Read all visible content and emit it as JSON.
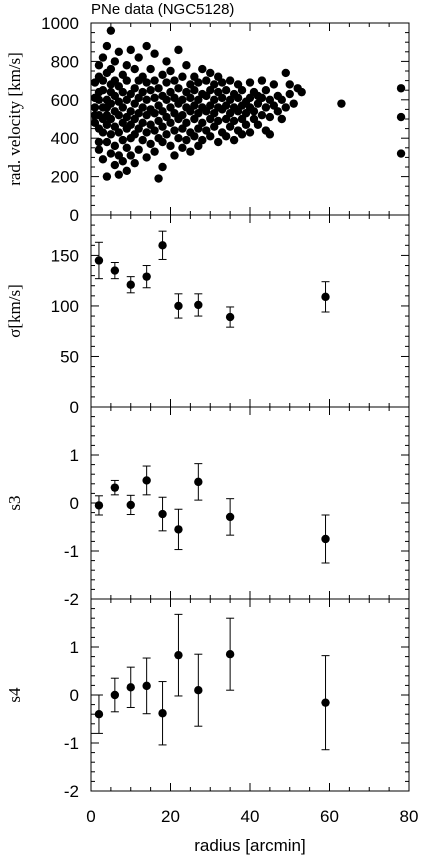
{
  "chart_data": [
    {
      "type": "scatter",
      "title": "PNe data (NGC5128)",
      "ylabel": "rad. velocity [km/s]",
      "xlim": [
        0,
        80
      ],
      "ylim": [
        0,
        1000
      ],
      "yticks": [
        "0",
        "200",
        "400",
        "600",
        "800",
        "1000"
      ],
      "note": "dense cloud of individual planetary nebulae; values below are an approximate sampling",
      "points": [
        [
          1,
          520
        ],
        [
          1,
          610
        ],
        [
          1,
          480
        ],
        [
          1,
          690
        ],
        [
          1,
          560
        ],
        [
          2,
          720
        ],
        [
          2,
          450
        ],
        [
          2,
          380
        ],
        [
          2,
          640
        ],
        [
          2,
          520
        ],
        [
          2,
          600
        ],
        [
          2,
          340
        ],
        [
          2,
          780
        ],
        [
          3,
          500
        ],
        [
          3,
          560
        ],
        [
          3,
          820
        ],
        [
          3,
          430
        ],
        [
          3,
          650
        ],
        [
          3,
          290
        ],
        [
          3,
          700
        ],
        [
          4,
          520
        ],
        [
          4,
          600
        ],
        [
          4,
          380
        ],
        [
          4,
          470
        ],
        [
          4,
          740
        ],
        [
          4,
          200
        ],
        [
          4,
          880
        ],
        [
          4,
          560
        ],
        [
          5,
          500
        ],
        [
          5,
          640
        ],
        [
          5,
          420
        ],
        [
          5,
          580
        ],
        [
          5,
          320
        ],
        [
          5,
          760
        ],
        [
          5,
          960
        ],
        [
          5,
          680
        ],
        [
          6,
          540
        ],
        [
          6,
          460
        ],
        [
          6,
          620
        ],
        [
          6,
          360
        ],
        [
          6,
          700
        ],
        [
          6,
          800
        ],
        [
          6,
          260
        ],
        [
          7,
          520
        ],
        [
          7,
          590
        ],
        [
          7,
          430
        ],
        [
          7,
          670
        ],
        [
          7,
          310
        ],
        [
          7,
          850
        ],
        [
          7,
          210
        ],
        [
          8,
          560
        ],
        [
          8,
          480
        ],
        [
          8,
          640
        ],
        [
          8,
          390
        ],
        [
          8,
          730
        ],
        [
          8,
          280
        ],
        [
          9,
          510
        ],
        [
          9,
          600
        ],
        [
          9,
          450
        ],
        [
          9,
          700
        ],
        [
          9,
          350
        ],
        [
          9,
          780
        ],
        [
          9,
          230
        ],
        [
          10,
          540
        ],
        [
          10,
          470
        ],
        [
          10,
          630
        ],
        [
          10,
          400
        ],
        [
          10,
          860
        ],
        [
          10,
          310
        ],
        [
          11,
          580
        ],
        [
          11,
          500
        ],
        [
          11,
          660
        ],
        [
          11,
          420
        ],
        [
          11,
          760
        ],
        [
          11,
          270
        ],
        [
          12,
          530
        ],
        [
          12,
          610
        ],
        [
          12,
          450
        ],
        [
          12,
          700
        ],
        [
          12,
          340
        ],
        [
          12,
          820
        ],
        [
          13,
          560
        ],
        [
          13,
          480
        ],
        [
          13,
          640
        ],
        [
          13,
          390
        ],
        [
          13,
          720
        ],
        [
          14,
          520
        ],
        [
          14,
          600
        ],
        [
          14,
          430
        ],
        [
          14,
          690
        ],
        [
          14,
          300
        ],
        [
          14,
          880
        ],
        [
          15,
          550
        ],
        [
          15,
          470
        ],
        [
          15,
          650
        ],
        [
          15,
          370
        ],
        [
          15,
          760
        ],
        [
          16,
          530
        ],
        [
          16,
          610
        ],
        [
          16,
          440
        ],
        [
          16,
          700
        ],
        [
          16,
          330
        ],
        [
          16,
          840
        ],
        [
          17,
          570
        ],
        [
          17,
          490
        ],
        [
          17,
          660
        ],
        [
          17,
          400
        ],
        [
          17,
          190
        ],
        [
          18,
          540
        ],
        [
          18,
          460
        ],
        [
          18,
          620
        ],
        [
          18,
          380
        ],
        [
          18,
          730
        ],
        [
          18,
          250
        ],
        [
          19,
          510
        ],
        [
          19,
          600
        ],
        [
          19,
          420
        ],
        [
          19,
          690
        ],
        [
          19,
          800
        ],
        [
          20,
          560
        ],
        [
          20,
          480
        ],
        [
          20,
          640
        ],
        [
          20,
          360
        ],
        [
          20,
          750
        ],
        [
          21,
          530
        ],
        [
          21,
          610
        ],
        [
          21,
          440
        ],
        [
          21,
          700
        ],
        [
          21,
          310
        ],
        [
          22,
          580
        ],
        [
          22,
          500
        ],
        [
          22,
          660
        ],
        [
          22,
          400
        ],
        [
          22,
          860
        ],
        [
          23,
          520
        ],
        [
          23,
          600
        ],
        [
          23,
          450
        ],
        [
          23,
          720
        ],
        [
          23,
          350
        ],
        [
          24,
          560
        ],
        [
          24,
          480
        ],
        [
          24,
          640
        ],
        [
          24,
          390
        ],
        [
          24,
          780
        ],
        [
          25,
          540
        ],
        [
          25,
          610
        ],
        [
          25,
          430
        ],
        [
          25,
          680
        ],
        [
          25,
          330
        ],
        [
          26,
          570
        ],
        [
          26,
          500
        ],
        [
          26,
          650
        ],
        [
          26,
          410
        ],
        [
          26,
          720
        ],
        [
          27,
          530
        ],
        [
          27,
          600
        ],
        [
          27,
          450
        ],
        [
          27,
          690
        ],
        [
          27,
          360
        ],
        [
          28,
          560
        ],
        [
          28,
          480
        ],
        [
          28,
          630
        ],
        [
          28,
          390
        ],
        [
          28,
          760
        ],
        [
          29,
          540
        ],
        [
          29,
          620
        ],
        [
          29,
          440
        ],
        [
          29,
          700
        ],
        [
          30,
          570
        ],
        [
          30,
          500
        ],
        [
          30,
          650
        ],
        [
          30,
          410
        ],
        [
          30,
          740
        ],
        [
          31,
          530
        ],
        [
          31,
          600
        ],
        [
          31,
          460
        ],
        [
          31,
          680
        ],
        [
          32,
          560
        ],
        [
          32,
          490
        ],
        [
          32,
          640
        ],
        [
          32,
          380
        ],
        [
          32,
          720
        ],
        [
          33,
          550
        ],
        [
          33,
          610
        ],
        [
          33,
          430
        ],
        [
          33,
          690
        ],
        [
          34,
          570
        ],
        [
          34,
          500
        ],
        [
          34,
          650
        ],
        [
          34,
          410
        ],
        [
          35,
          530
        ],
        [
          35,
          600
        ],
        [
          35,
          460
        ],
        [
          35,
          700
        ],
        [
          36,
          560
        ],
        [
          36,
          490
        ],
        [
          36,
          630
        ],
        [
          36,
          390
        ],
        [
          37,
          540
        ],
        [
          37,
          610
        ],
        [
          37,
          440
        ],
        [
          37,
          680
        ],
        [
          38,
          570
        ],
        [
          38,
          500
        ],
        [
          38,
          650
        ],
        [
          38,
          420
        ],
        [
          39,
          530
        ],
        [
          39,
          590
        ],
        [
          39,
          470
        ],
        [
          40,
          560
        ],
        [
          40,
          610
        ],
        [
          40,
          430
        ],
        [
          40,
          690
        ],
        [
          41,
          540
        ],
        [
          41,
          500
        ],
        [
          41,
          640
        ],
        [
          42,
          580
        ],
        [
          42,
          470
        ],
        [
          42,
          620
        ],
        [
          43,
          520
        ],
        [
          43,
          610
        ],
        [
          43,
          700
        ],
        [
          44,
          560
        ],
        [
          44,
          440
        ],
        [
          44,
          650
        ],
        [
          45,
          600
        ],
        [
          45,
          510
        ],
        [
          45,
          420
        ],
        [
          46,
          570
        ],
        [
          46,
          680
        ],
        [
          47,
          540
        ],
        [
          47,
          620
        ],
        [
          48,
          600
        ],
        [
          48,
          500
        ],
        [
          49,
          740
        ],
        [
          49,
          560
        ],
        [
          50,
          630
        ],
        [
          50,
          680
        ],
        [
          51,
          580
        ],
        [
          52,
          660
        ],
        [
          53,
          640
        ],
        [
          63,
          580
        ],
        [
          78,
          660
        ],
        [
          78,
          510
        ],
        [
          78,
          320
        ]
      ]
    },
    {
      "type": "scatter",
      "ylabel": "σ[km/s]",
      "xlim": [
        0,
        80
      ],
      "ylim": [
        0,
        190
      ],
      "yticks": [
        "0",
        "50",
        "100",
        "150"
      ],
      "points": [
        {
          "x": 2,
          "y": 145,
          "err": 18
        },
        {
          "x": 6,
          "y": 135,
          "err": 8
        },
        {
          "x": 10,
          "y": 121,
          "err": 8
        },
        {
          "x": 14,
          "y": 129,
          "err": 11
        },
        {
          "x": 18,
          "y": 160,
          "err": 14
        },
        {
          "x": 22,
          "y": 100,
          "err": 12
        },
        {
          "x": 27,
          "y": 101,
          "err": 11
        },
        {
          "x": 35,
          "y": 89,
          "err": 10
        },
        {
          "x": 59,
          "y": 109,
          "err": 15
        }
      ]
    },
    {
      "type": "scatter",
      "ylabel": "s3",
      "xlim": [
        0,
        80
      ],
      "ylim": [
        -2,
        2
      ],
      "yticks": [
        "-2",
        "-1",
        "0",
        "1"
      ],
      "points": [
        {
          "x": 2,
          "y": -0.05,
          "err": 0.2
        },
        {
          "x": 6,
          "y": 0.32,
          "err": 0.15
        },
        {
          "x": 10,
          "y": -0.04,
          "err": 0.2
        },
        {
          "x": 14,
          "y": 0.47,
          "err": 0.3
        },
        {
          "x": 18,
          "y": -0.23,
          "err": 0.35
        },
        {
          "x": 22,
          "y": -0.55,
          "err": 0.42
        },
        {
          "x": 27,
          "y": 0.44,
          "err": 0.38
        },
        {
          "x": 35,
          "y": -0.29,
          "err": 0.38
        },
        {
          "x": 59,
          "y": -0.75,
          "err": 0.5
        }
      ]
    },
    {
      "type": "scatter",
      "ylabel": "s4",
      "xlabel": "radius [arcmin]",
      "xlim": [
        0,
        80
      ],
      "ylim": [
        -2,
        2
      ],
      "yticks": [
        "-2",
        "-1",
        "0",
        "1"
      ],
      "xticks": [
        "0",
        "20",
        "40",
        "60",
        "80"
      ],
      "points": [
        {
          "x": 2,
          "y": -0.4,
          "err": 0.4
        },
        {
          "x": 6,
          "y": 0.0,
          "err": 0.35
        },
        {
          "x": 10,
          "y": 0.16,
          "err": 0.42
        },
        {
          "x": 14,
          "y": 0.19,
          "err": 0.58
        },
        {
          "x": 18,
          "y": -0.38,
          "err": 0.66
        },
        {
          "x": 22,
          "y": 0.83,
          "err": 0.85
        },
        {
          "x": 27,
          "y": 0.1,
          "err": 0.75
        },
        {
          "x": 35,
          "y": 0.85,
          "err": 0.75
        },
        {
          "x": 59,
          "y": -0.16,
          "err": 0.98
        }
      ]
    }
  ]
}
